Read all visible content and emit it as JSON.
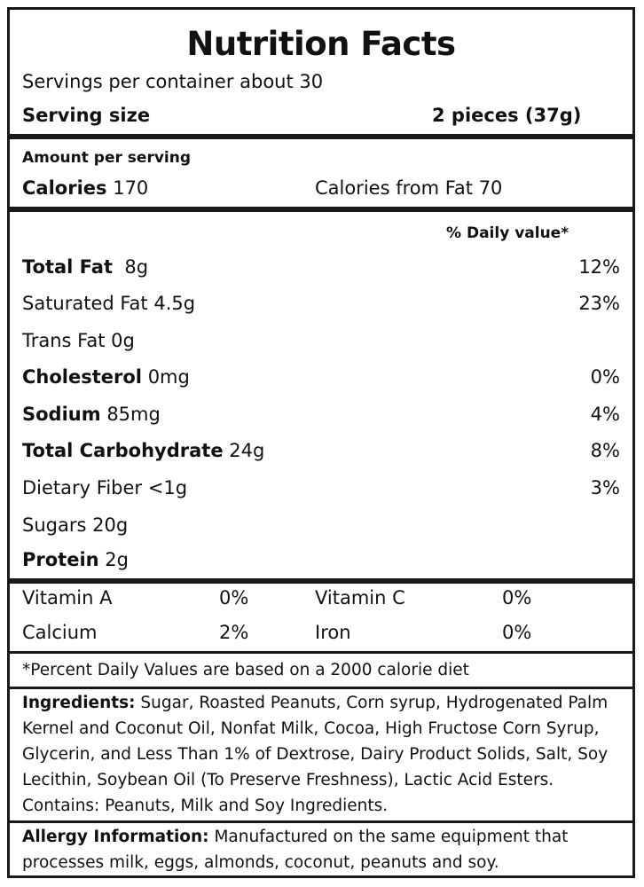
{
  "title": "Nutrition Facts",
  "servings": "Servings per container about 30",
  "serving_size_label": "Serving size",
  "serving_size_value": "2 pieces (37g)",
  "amount_per_serving": "Amount per serving",
  "calories_label": "Calories",
  "calories_value": "170",
  "calories_from_fat": "Calories from Fat 70",
  "daily_value_header": "% Daily value*",
  "nutrients": [
    {
      "name": "Total Fat",
      "amount": "8g",
      "dv": "12%"
    },
    {
      "name": "Saturated Fat",
      "amount": "4.5g",
      "dv": "23%"
    },
    {
      "name": "Trans Fat",
      "amount": "0g",
      "dv": ""
    },
    {
      "name": "Cholesterol",
      "amount": "0mg",
      "dv": "0%"
    },
    {
      "name": "Sodium",
      "amount": "85mg",
      "dv": "4%"
    },
    {
      "name": "Total Carbohydrate",
      "amount": "24g",
      "dv": "8%"
    },
    {
      "name": "Dietary Fiber",
      "amount": "<1g",
      "dv": "3%"
    },
    {
      "name": "Sugars",
      "amount": "20g",
      "dv": ""
    },
    {
      "name": "Protein",
      "amount": "2g",
      "dv": ""
    }
  ],
  "vitamins": [
    {
      "name": "Vitamin A",
      "dv": "0%"
    },
    {
      "name": "Vitamin C",
      "dv": "0%"
    },
    {
      "name": "Calcium",
      "dv": "2%"
    },
    {
      "name": "Iron",
      "dv": "0%"
    }
  ],
  "footnote": "*Percent Daily Values are based on a 2000 calorie diet",
  "ingredients_label": "Ingredients:",
  "ingredients_text": "Sugar, Roasted Peanuts, Corn syrup, Hydrogenated Palm Kernel and Coconut Oil, Nonfat Milk, Cocoa, High Fructose Corn Syrup, Glycerin, and Less Than 1% of Dextrose, Dairy Product Solids, Salt, Soy Lecithin, Soybean Oil (To Preserve Freshness), Lactic Acid Esters. Contains: Peanuts, Milk and Soy Ingredients.",
  "allergy_label": "Allergy Information:",
  "allergy_text": "Manufactured on the same equipment that processes milk, eggs, almonds, coconut, peanuts and soy."
}
